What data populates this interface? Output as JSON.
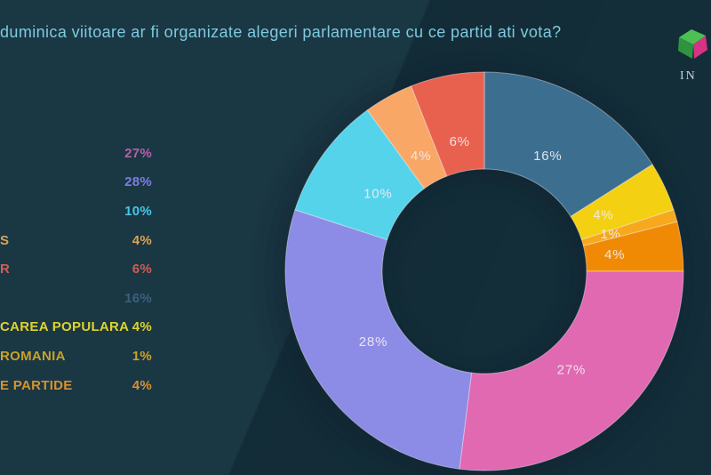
{
  "title": "duminica viitoare ar fi organizate alegeri parlamentare cu ce partid ati vota?",
  "title_color": "#7ecade",
  "logo": {
    "text": "IN",
    "icon": "inscop-cube-logo",
    "colors": {
      "green_light": "#4cc052",
      "green_dark": "#2f9440",
      "pink": "#d63384"
    }
  },
  "background_color": "#15323f",
  "legend": {
    "position": "left",
    "items": [
      {
        "label": "",
        "value": "27%",
        "color": "#b75fa8"
      },
      {
        "label": "",
        "value": "28%",
        "color": "#7d7de2"
      },
      {
        "label": "",
        "value": "10%",
        "color": "#43c7e6"
      },
      {
        "label": "S",
        "value": "4%",
        "color": "#d9a258"
      },
      {
        "label": "R",
        "value": "6%",
        "color": "#d05c55"
      },
      {
        "label": "",
        "value": "16%",
        "color": "#3a617e"
      },
      {
        "label": "CAREA POPULARA",
        "value": "4%",
        "color": "#ded32c"
      },
      {
        "label": "ROMANIA",
        "value": "1%",
        "color": "#c9a22a"
      },
      {
        "label": "E PARTIDE",
        "value": "4%",
        "color": "#d8922e"
      }
    ]
  },
  "chart_data": {
    "type": "pie",
    "subtype": "donut",
    "title": "duminica viitoare ar fi organizate alegeri parlamentare cu ce partid ati vota?",
    "start_angle_deg": 0,
    "direction": "clockwise",
    "legend_position": "left",
    "label_color": "#f2ebf2",
    "slices": [
      {
        "value": 16,
        "label": "16%",
        "color": "#3c6e90"
      },
      {
        "value": 4,
        "label": "4%",
        "color": "#f3d011"
      },
      {
        "value": 1,
        "label": "1%",
        "color": "#f8a81c"
      },
      {
        "value": 4,
        "label": "4%",
        "color": "#f08a05"
      },
      {
        "value": 27,
        "label": "27%",
        "color": "#e069b2"
      },
      {
        "value": 28,
        "label": "28%",
        "color": "#8c8ce6"
      },
      {
        "value": 10,
        "label": "10%",
        "color": "#55d3ea"
      },
      {
        "value": 4,
        "label": "4%",
        "color": "#f9a766"
      },
      {
        "value": 6,
        "label": "6%",
        "color": "#e8614f"
      }
    ]
  }
}
